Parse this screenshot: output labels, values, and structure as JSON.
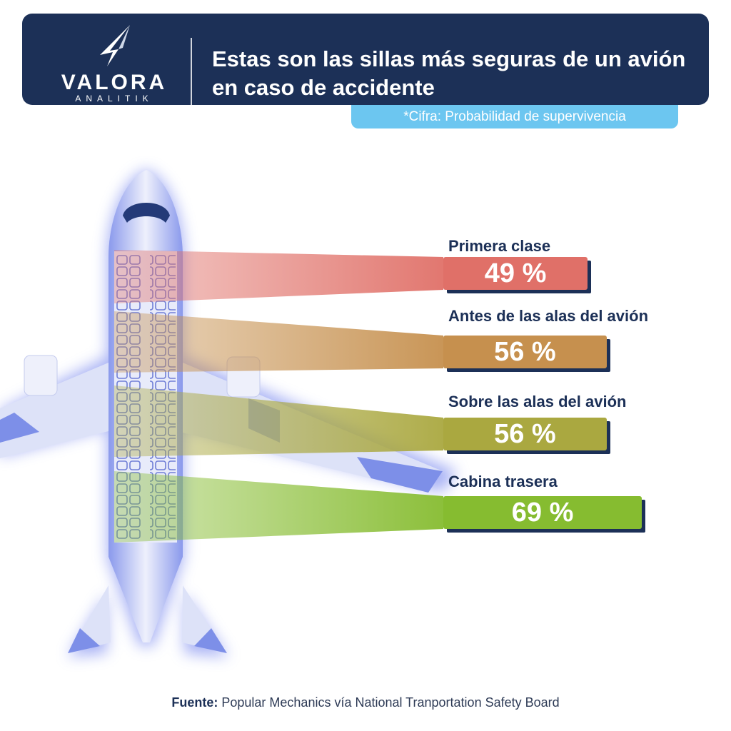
{
  "header": {
    "logo_name": "VALORA",
    "logo_sub": "ANALITIK",
    "title_line1": "Estas son las sillas más seguras de un avión",
    "title_line2": "en caso de accidente"
  },
  "note": "*Cifra: Probabilidad de supervivencia",
  "chart_data": {
    "type": "bar",
    "categories": [
      "Primera clase",
      "Antes de las alas del avión",
      "Sobre las alas del avión",
      "Cabina trasera"
    ],
    "values": [
      49,
      56,
      56,
      69
    ],
    "value_labels": [
      "49 %",
      "56 %",
      "56 %",
      "69 %"
    ],
    "colors": [
      "#e07068",
      "#c6904e",
      "#aaa840",
      "#86bc30"
    ],
    "unit": "%"
  },
  "source": {
    "label": "Fuente:",
    "text": "Popular Mechanics vía National Tranportation Safety Board"
  },
  "colors": {
    "header_bg": "#1c3057",
    "note_bg": "#6cc6f0",
    "plane": "#7d8fe8"
  }
}
